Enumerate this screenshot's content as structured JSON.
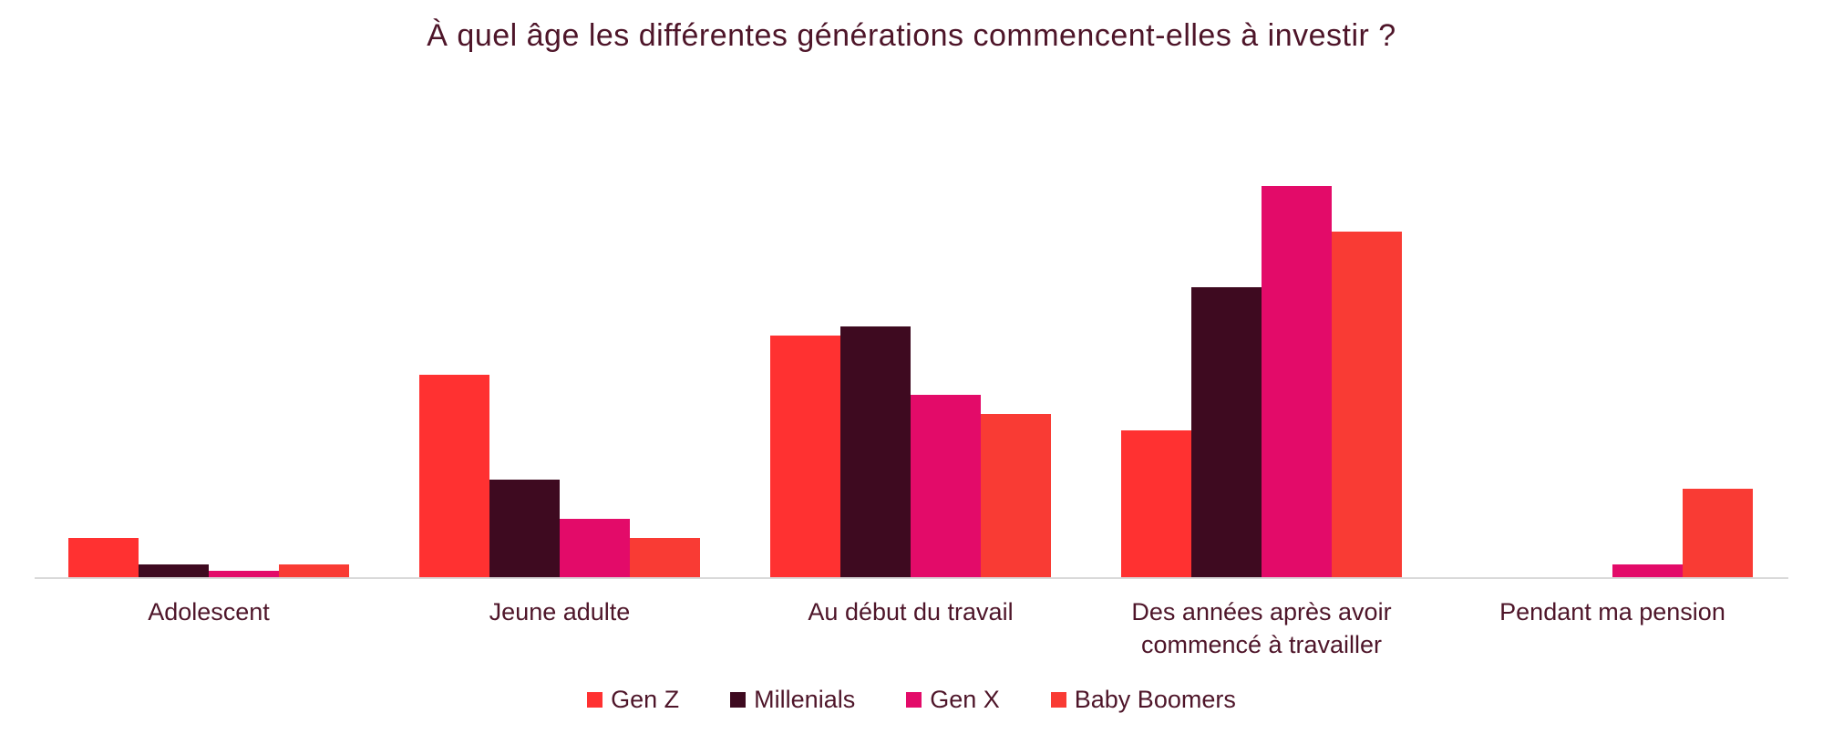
{
  "title": "À quel âge les différentes générations commencent-elles à investir ?",
  "colors": {
    "title_text": "#4E1529",
    "axis_line": "#D9D9D9",
    "background": "#FFFFFF"
  },
  "chart_data": {
    "type": "bar",
    "title": "À quel âge les différentes générations commencent-elles à investir ?",
    "categories": [
      "Adolescent",
      "Jeune adulte",
      "Au début du travail",
      "Des années après avoir commencé à travailler",
      "Pendant ma pension"
    ],
    "series": [
      {
        "name": "Gen Z",
        "color": "#FF3131",
        "values": [
          6,
          31,
          37,
          22.5,
          0
        ]
      },
      {
        "name": "Millenials",
        "color": "#3E0A20",
        "values": [
          2,
          15,
          38.5,
          44.5,
          0
        ]
      },
      {
        "name": "Gen X",
        "color": "#E30B69",
        "values": [
          1,
          9,
          28,
          60,
          2
        ]
      },
      {
        "name": "Baby Boomers",
        "color": "#F93B34",
        "values": [
          2,
          6,
          25,
          53,
          13.5
        ]
      }
    ],
    "value_unit": "percent (estimated from bar heights, no y-axis shown)",
    "ylim": [
      0,
      74.5
    ],
    "xlabel": "",
    "ylabel": "",
    "grid": false,
    "y_axis_labels_visible": false,
    "legend_position": "bottom"
  }
}
